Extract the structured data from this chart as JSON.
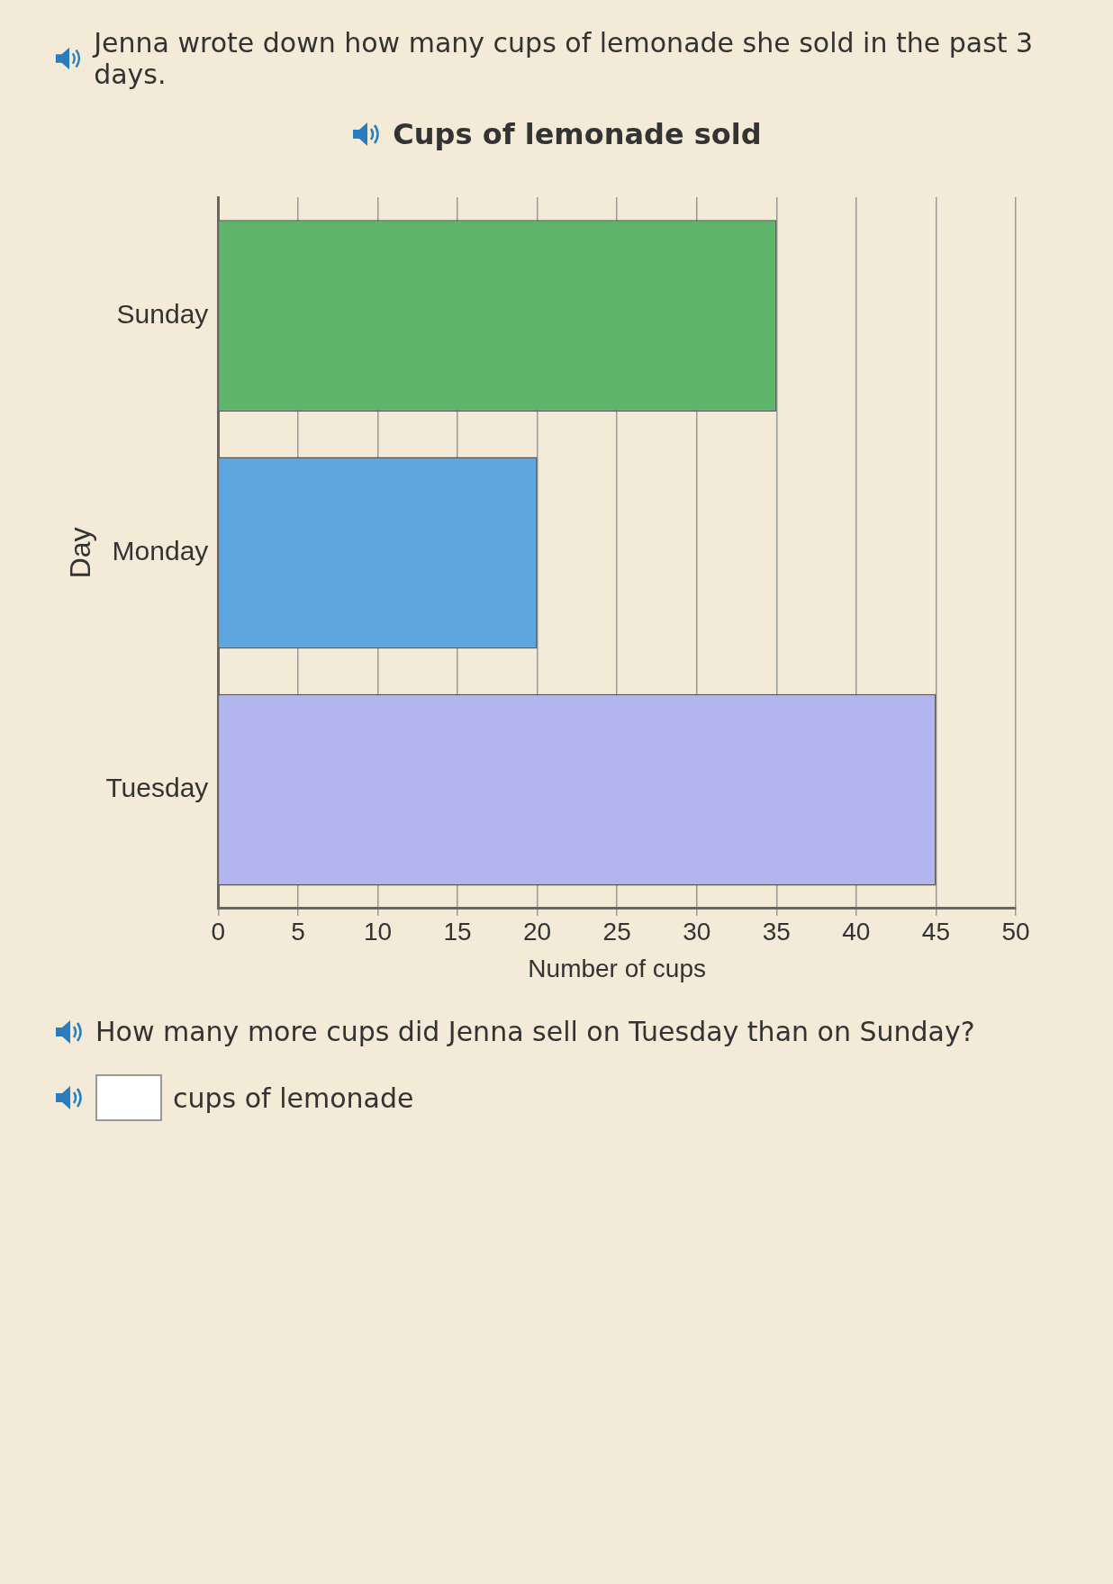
{
  "chart_data": {
    "type": "bar",
    "orientation": "horizontal",
    "title": "Cups of lemonade sold",
    "xlabel": "Number of cups",
    "ylabel": "Day",
    "categories": [
      "Sunday",
      "Monday",
      "Tuesday"
    ],
    "values": [
      35,
      20,
      45
    ],
    "colors": [
      "#5fb46c",
      "#5ea6df",
      "#b3b5ee"
    ],
    "xlim": [
      0,
      50
    ],
    "xticks": [
      0,
      5,
      10,
      15,
      20,
      25,
      30,
      35,
      40,
      45,
      50
    ],
    "grid": "x",
    "legend": false,
    "annotations": [
      "Jenna wrote down how many cups of lemonade she sold in the past 3 days.",
      "How many more cups did Jenna sell on Tuesday than on Sunday?",
      "cups of lemonade"
    ]
  }
}
